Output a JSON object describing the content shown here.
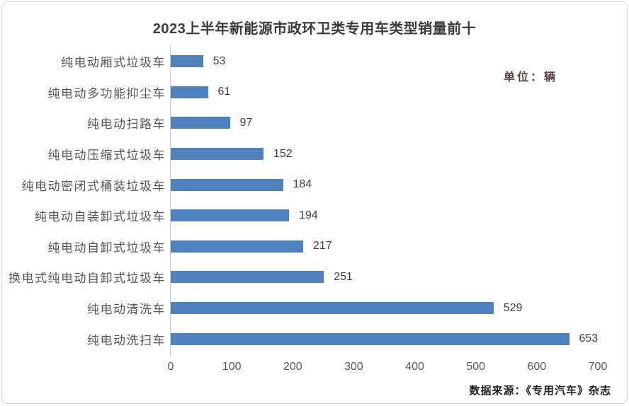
{
  "page": {
    "source_note": "数据来源：《专用汽车》杂志"
  },
  "chart_data": {
    "type": "bar",
    "orientation": "horizontal",
    "title": "2023上半年新能源市政环卫类专用车类型销量前十",
    "unit_label": "单位：辆",
    "categories": [
      "纯电动厢式垃圾车",
      "纯电动多功能抑尘车",
      "纯电动扫路车",
      "纯电动压缩式垃圾车",
      "纯电动密闭式桶装垃圾车",
      "纯电动自装卸式垃圾车",
      "纯电动自卸式垃圾车",
      "换电式纯电动自卸式垃圾车",
      "纯电动清洗车",
      "纯电动洗扫车"
    ],
    "values": [
      53,
      61,
      97,
      152,
      184,
      194,
      217,
      251,
      529,
      653
    ],
    "x_ticks": [
      0,
      100,
      200,
      300,
      400,
      500,
      600,
      700
    ],
    "xlim": [
      0,
      700
    ],
    "bar_color": "#4e81bd",
    "grid": false,
    "value_labels": true,
    "legend": "none"
  }
}
